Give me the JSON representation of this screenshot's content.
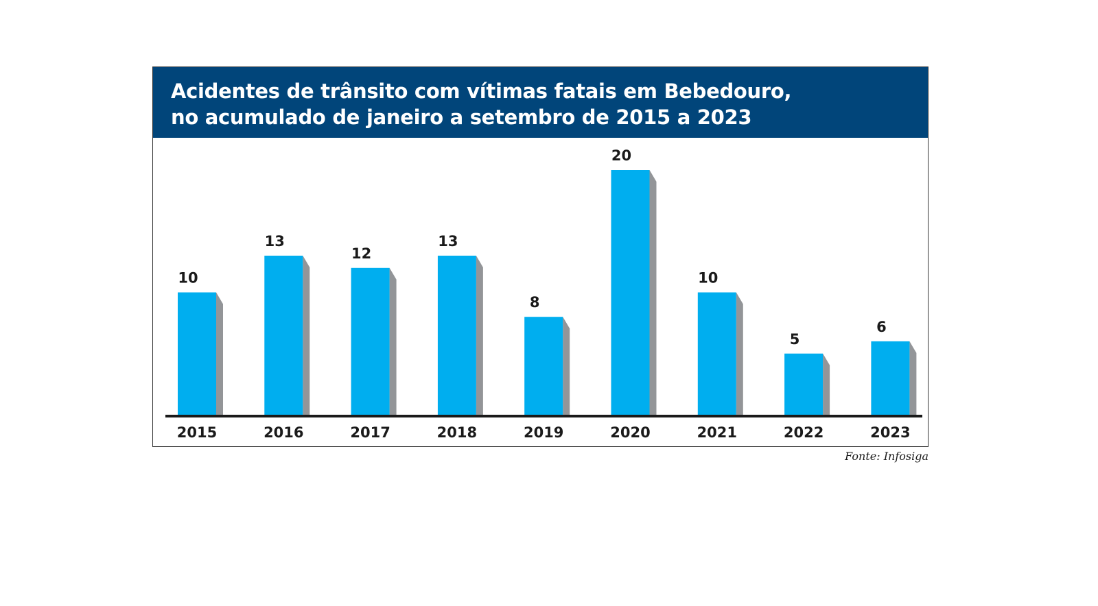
{
  "chart_data": {
    "type": "bar",
    "title": "Acidentes de trânsito com vítimas fatais em Bebedouro, no acumulado de janeiro a setembro de 2015 a 2023",
    "title_lines": [
      "Acidentes de trânsito com vítimas fatais em Bebedouro,",
      "no acumulado de janeiro a setembro de 2015 a 2023"
    ],
    "xlabel": "",
    "ylabel": "",
    "categories": [
      "2015",
      "2016",
      "2017",
      "2018",
      "2019",
      "2020",
      "2021",
      "2022",
      "2023"
    ],
    "values": [
      10,
      13,
      12,
      13,
      8,
      20,
      10,
      5,
      6
    ],
    "ylim": [
      0,
      20
    ],
    "grid": false,
    "data_labels": true,
    "bar_color": "#00aeef",
    "shadow_color": "#939598",
    "header_color": "#01457a",
    "source": "Fonte: Infosiga"
  }
}
